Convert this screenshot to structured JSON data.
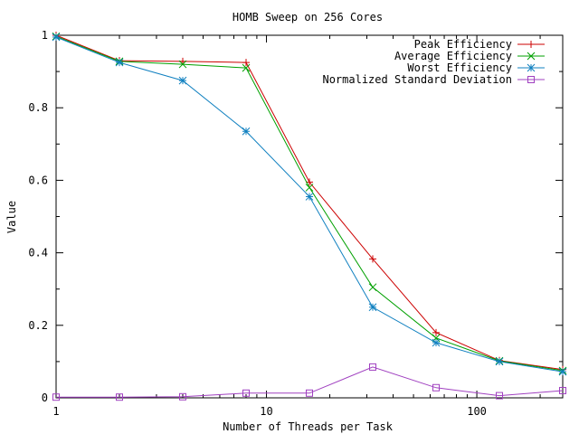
{
  "chart_data": {
    "type": "line",
    "title": "HOMB Sweep on 256 Cores",
    "xlabel": "Number of Threads per Task",
    "ylabel": "Value",
    "x_scale": "log",
    "xlim": [
      1,
      256
    ],
    "ylim": [
      0,
      1
    ],
    "x_ticks": [
      1,
      10,
      100
    ],
    "x_tick_labels": [
      "1",
      "10",
      "100"
    ],
    "y_ticks": [
      0,
      0.2,
      0.4,
      0.6,
      0.8,
      1
    ],
    "y_tick_labels": [
      "0",
      "0.2",
      "0.4",
      "0.6",
      "0.8",
      "1"
    ],
    "grid": false,
    "legend_position": "top-right",
    "x": [
      1,
      2,
      4,
      8,
      16,
      32,
      64,
      128,
      256
    ],
    "series": [
      {
        "name": "Peak Efficiency",
        "color": "#cc0000",
        "marker": "plus",
        "values": [
          1.0,
          0.93,
          0.928,
          0.925,
          0.595,
          0.383,
          0.18,
          0.103,
          0.078
        ]
      },
      {
        "name": "Average Efficiency",
        "color": "#00a000",
        "marker": "cross",
        "values": [
          0.997,
          0.928,
          0.92,
          0.91,
          0.58,
          0.305,
          0.165,
          0.102,
          0.075
        ]
      },
      {
        "name": "Worst Efficiency",
        "color": "#1080c0",
        "marker": "star",
        "values": [
          0.995,
          0.925,
          0.875,
          0.735,
          0.555,
          0.25,
          0.152,
          0.1,
          0.072
        ]
      },
      {
        "name": "Normalized Standard Deviation",
        "color": "#a040c0",
        "marker": "square",
        "values": [
          0.002,
          0.002,
          0.003,
          0.013,
          0.013,
          0.085,
          0.028,
          0.006,
          0.02
        ]
      }
    ]
  }
}
